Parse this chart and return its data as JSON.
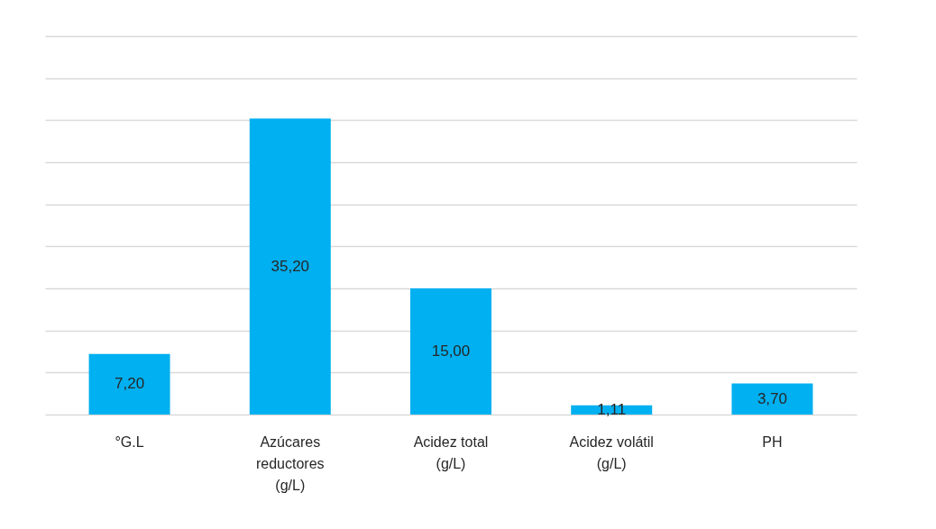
{
  "chart_data": {
    "type": "bar",
    "categories": [
      "°G.L",
      "Azúcares reductores (g/L)",
      "Acidez total (g/L)",
      "Acidez volátil (g/L)",
      "PH"
    ],
    "values": [
      7.2,
      35.2,
      15.0,
      1.11,
      3.7
    ],
    "value_labels": [
      "7,20",
      "35,20",
      "15,00",
      "1,11",
      "3,70"
    ],
    "color": "#00b0f0",
    "ylim": [
      0,
      45
    ],
    "yticks": [
      {
        "value": 0,
        "label": null
      },
      {
        "value": 5,
        "label": null
      },
      {
        "value": 10,
        "label": null
      },
      {
        "value": 15,
        "label": null
      },
      {
        "value": 20,
        "label": null
      },
      {
        "value": 25,
        "label": null
      },
      {
        "value": 30,
        "label": null
      },
      {
        "value": 35,
        "label": null
      },
      {
        "value": 40,
        "label": null
      },
      {
        "value": 45,
        "label": null
      }
    ],
    "grid": true,
    "tick_labels": "x"
  }
}
